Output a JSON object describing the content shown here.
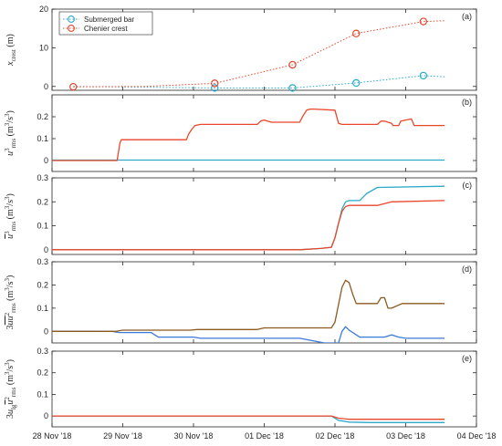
{
  "colors": {
    "submerged": "#2aa9c9",
    "chenier": "#e8462b",
    "crest_d": "#8b5a1f",
    "bar_d": "#3c7ad9",
    "axis": "#262626"
  },
  "x_tick_labels": [
    "28 Nov '18",
    "29 Nov '18",
    "30 Nov '18",
    "01 Dec '18",
    "02 Dec '18",
    "03 Dec '18",
    "04 Dec '18"
  ],
  "chart_data": [
    {
      "type": "scatter",
      "tag": "(a)",
      "ylabel": "x_crest (m)",
      "ylim": [
        -1,
        20
      ],
      "yticks": [
        0,
        10,
        20
      ],
      "legend": {
        "placement": "top-left",
        "entries": [
          "Submerged bar",
          "Chenier crest"
        ]
      },
      "x_unit": "days since 28 Nov '18",
      "series": [
        {
          "name": "Submerged bar",
          "marker_x": [
            2.3,
            3.4,
            4.3,
            5.25
          ],
          "marker_y": [
            -0.4,
            -0.4,
            0.9,
            2.8
          ],
          "line_x": [
            0.3,
            1.3,
            2.3,
            3.4,
            4.3,
            5.25,
            5.55
          ],
          "line_y": [
            0,
            -0.2,
            -0.4,
            -0.4,
            0.9,
            2.8,
            2.5
          ]
        },
        {
          "name": "Chenier crest",
          "marker_x": [
            0.3,
            2.3,
            3.4,
            4.3,
            5.25
          ],
          "marker_y": [
            -0.1,
            0.8,
            5.6,
            13.7,
            16.8
          ],
          "line_x": [
            0.3,
            1.3,
            2.3,
            3.4,
            4.3,
            5.25,
            5.55
          ],
          "line_y": [
            -0.1,
            0,
            0.8,
            5.6,
            13.7,
            16.8,
            17.0
          ]
        }
      ]
    },
    {
      "type": "line",
      "tag": "(b)",
      "ylabel": "u^3_rms (m^3/s^3)",
      "ylim": [
        -0.05,
        0.3
      ],
      "yticks": [
        0,
        0.1,
        0.2
      ],
      "series": [
        {
          "name": "Submerged bar",
          "x": [
            0,
            5.55
          ],
          "y": [
            0.002,
            0.002
          ]
        },
        {
          "name": "Chenier crest",
          "x": [
            0,
            0.92,
            0.96,
            0.98,
            1.9,
            1.93,
            1.97,
            2.02,
            2.1,
            2.9,
            2.95,
            3.0,
            3.1,
            3.5,
            3.55,
            3.6,
            3.65,
            3.7,
            4.0,
            4.05,
            4.1,
            4.18,
            4.6,
            4.65,
            4.7,
            4.8,
            4.82,
            4.9,
            4.93,
            5.08,
            5.12,
            5.55
          ],
          "y": [
            0,
            0,
            0.08,
            0.095,
            0.095,
            0.12,
            0.14,
            0.16,
            0.165,
            0.165,
            0.18,
            0.185,
            0.175,
            0.175,
            0.205,
            0.23,
            0.235,
            0.235,
            0.23,
            0.17,
            0.165,
            0.165,
            0.165,
            0.18,
            0.18,
            0.17,
            0.16,
            0.16,
            0.18,
            0.19,
            0.16,
            0.16
          ]
        }
      ]
    },
    {
      "type": "line",
      "tag": "(c)",
      "ylabel": "u^3_rms (m^3/s^3)",
      "ylim": [
        -0.02,
        0.3
      ],
      "yticks": [
        0,
        0.1,
        0.2,
        0.3
      ],
      "series": [
        {
          "name": "Submerged bar",
          "x": [
            0,
            3.5,
            3.8,
            3.95,
            4.0,
            4.05,
            4.1,
            4.15,
            4.2,
            4.35,
            4.45,
            4.6,
            5.55
          ],
          "y": [
            0,
            0,
            0.005,
            0.01,
            0.05,
            0.11,
            0.17,
            0.2,
            0.205,
            0.205,
            0.235,
            0.26,
            0.265
          ]
        },
        {
          "name": "Chenier crest",
          "x": [
            0,
            3.5,
            3.8,
            3.95,
            4.0,
            4.05,
            4.1,
            4.15,
            4.2,
            4.6,
            4.8,
            5.55
          ],
          "y": [
            0,
            0,
            0.005,
            0.01,
            0.05,
            0.11,
            0.16,
            0.18,
            0.185,
            0.185,
            0.2,
            0.205
          ]
        }
      ]
    },
    {
      "type": "line",
      "tag": "(d)",
      "ylabel": "3 u u^2_rms (m^3/s^3)",
      "ylim": [
        -0.05,
        0.3
      ],
      "yticks": [
        0,
        0.1,
        0.2,
        0.3
      ],
      "series": [
        {
          "name": "Submerged bar",
          "x": [
            0,
            0.85,
            0.95,
            1.4,
            1.5,
            2.0,
            2.1,
            2.5,
            3.5,
            3.85,
            3.95,
            4.05,
            4.1,
            4.15,
            4.2,
            4.3,
            4.35,
            4.5,
            4.7,
            4.8,
            4.9,
            5.0,
            5.55
          ],
          "y": [
            0,
            0,
            -0.005,
            -0.005,
            -0.025,
            -0.025,
            -0.03,
            -0.03,
            -0.03,
            -0.05,
            -0.05,
            -0.05,
            0.0,
            0.02,
            0.005,
            -0.015,
            -0.025,
            -0.025,
            -0.025,
            -0.015,
            -0.025,
            -0.03,
            -0.03
          ]
        },
        {
          "name": "Chenier crest",
          "x": [
            0,
            0.9,
            1.0,
            1.95,
            2.05,
            2.9,
            3.0,
            3.95,
            4.0,
            4.1,
            4.15,
            4.2,
            4.25,
            4.3,
            4.33,
            4.35,
            4.6,
            4.65,
            4.7,
            4.75,
            4.8,
            4.95,
            5.05,
            5.55
          ],
          "y": [
            0,
            0,
            0.005,
            0.005,
            0.008,
            0.008,
            0.015,
            0.015,
            0.04,
            0.19,
            0.22,
            0.21,
            0.16,
            0.12,
            0.12,
            0.12,
            0.12,
            0.145,
            0.145,
            0.1,
            0.1,
            0.12,
            0.12,
            0.12
          ]
        }
      ]
    },
    {
      "type": "line",
      "tag": "(e)",
      "ylabel": "3 u_lg u^2_rms (m^3/s^3)",
      "ylim": [
        -0.05,
        0.3
      ],
      "yticks": [
        0,
        0.1,
        0.2,
        0.3
      ],
      "series": [
        {
          "name": "Submerged bar",
          "x": [
            0,
            3.95,
            4.05,
            4.2,
            4.5,
            5.55
          ],
          "y": [
            0,
            0,
            -0.02,
            -0.028,
            -0.03,
            -0.03
          ]
        },
        {
          "name": "Chenier crest",
          "x": [
            0,
            3.95,
            4.05,
            4.2,
            5.55
          ],
          "y": [
            0,
            0,
            -0.01,
            -0.015,
            -0.015
          ]
        }
      ]
    }
  ]
}
